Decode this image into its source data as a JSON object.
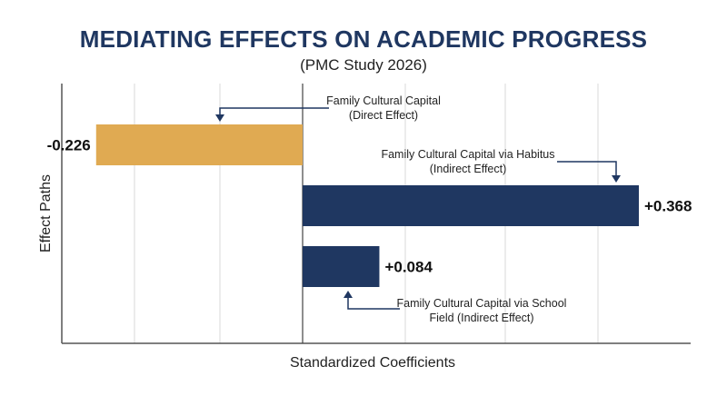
{
  "title": "MEDIATING EFFECTS ON ACADEMIC PROGRESS",
  "subtitle": "(PMC Study 2026)",
  "colors": {
    "title": "#1f3761",
    "positive_bar": "#1f3761",
    "negative_bar": "#e0aa52",
    "grid": "#d9d9d9",
    "axis": "#555555"
  },
  "chart_data": {
    "type": "bar",
    "orientation": "horizontal",
    "title": "MEDIATING EFFECTS ON ACADEMIC PROGRESS",
    "subtitle": "(PMC Study 2026)",
    "xlabel": "Standardized Coefficients",
    "ylabel": "Effect Paths",
    "grid": true,
    "bars": [
      {
        "value": -0.226,
        "value_label": "-0.226",
        "color": "#e0aa52",
        "annotation": [
          "Family Cultural Capital",
          "(Direct Effect)"
        ]
      },
      {
        "value": 0.368,
        "value_label": "+0.368",
        "color": "#1f3761",
        "annotation": [
          "Family Cultural Capital via Habitus",
          "(Indirect Effect)"
        ]
      },
      {
        "value": 0.084,
        "value_label": "+0.084",
        "color": "#1f3761",
        "annotation": [
          "Family Cultural Capital via School",
          "Field (Indirect Effect)"
        ]
      }
    ]
  }
}
